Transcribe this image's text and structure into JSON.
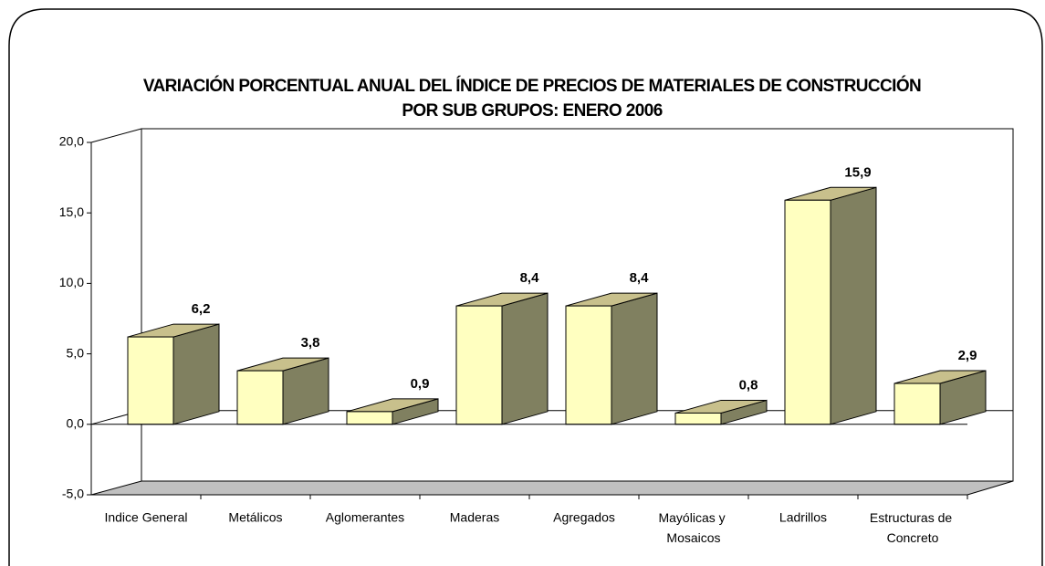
{
  "chart_data": {
    "type": "bar3d",
    "title": [
      "VARIACIÓN PORCENTUAL ANUAL DEL ÍNDICE DE PRECIOS DE MATERIALES DE CONSTRUCCIÓN",
      "POR SUB GRUPOS: ENERO 2006"
    ],
    "categories": [
      "Indice General",
      "Metálicos",
      "Aglomerantes",
      "Maderas",
      "Agregados",
      "Mayólicas y Mosaicos",
      "Ladrillos",
      "Estructuras de Concreto"
    ],
    "values": [
      6.2,
      3.8,
      0.9,
      8.4,
      8.4,
      0.8,
      15.9,
      2.9
    ],
    "value_labels": [
      "6,2",
      "3,8",
      "0,9",
      "8,4",
      "8,4",
      "0,8",
      "15,9",
      "2,9"
    ],
    "colors": {
      "front": "#ffffc0",
      "side": "#808060",
      "top": "#c8c08c"
    },
    "ylim": [
      -5,
      20
    ],
    "yticks": [
      {
        "value": -5,
        "label": "-5,0"
      },
      {
        "value": 0,
        "label": "0,0"
      },
      {
        "value": 5,
        "label": "5,0"
      },
      {
        "value": 10,
        "label": "10,0"
      },
      {
        "value": 15,
        "label": "15,0"
      },
      {
        "value": 20,
        "label": "20,0"
      }
    ]
  }
}
